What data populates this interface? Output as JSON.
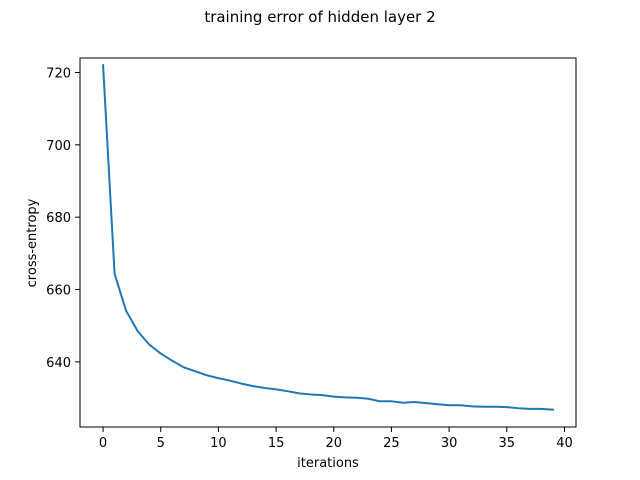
{
  "chart_data": {
    "type": "line",
    "title": "training error of hidden layer 2",
    "xlabel": "iterations",
    "ylabel": "cross-entropy",
    "xlim": [
      -2,
      41
    ],
    "ylim": [
      622,
      724
    ],
    "xticks": [
      0,
      5,
      10,
      15,
      20,
      25,
      30,
      35,
      40
    ],
    "yticks": [
      640,
      660,
      680,
      700,
      720
    ],
    "grid": false,
    "legend": "none",
    "colors": {
      "line": "#1f77b4"
    },
    "series": [
      {
        "x": [
          0,
          1,
          2,
          3,
          4,
          5,
          6,
          7,
          8,
          9,
          10,
          11,
          12,
          13,
          14,
          15,
          16,
          17,
          18,
          19,
          20,
          21,
          22,
          23,
          24,
          25,
          26,
          27,
          28,
          29,
          30,
          31,
          32,
          33,
          34,
          35,
          36,
          37,
          38,
          39
        ],
        "values": [
          722.0,
          664.3,
          654.1,
          648.5,
          644.8,
          642.3,
          640.3,
          638.5,
          637.4,
          636.3,
          635.5,
          634.8,
          634.0,
          633.3,
          632.8,
          632.4,
          631.9,
          631.3,
          631.0,
          630.8,
          630.4,
          630.2,
          630.1,
          629.8,
          629.1,
          629.1,
          628.7,
          628.9,
          628.6,
          628.3,
          628.0,
          628.0,
          627.7,
          627.6,
          627.6,
          627.5,
          627.2,
          627.0,
          627.0,
          626.8
        ]
      }
    ]
  }
}
